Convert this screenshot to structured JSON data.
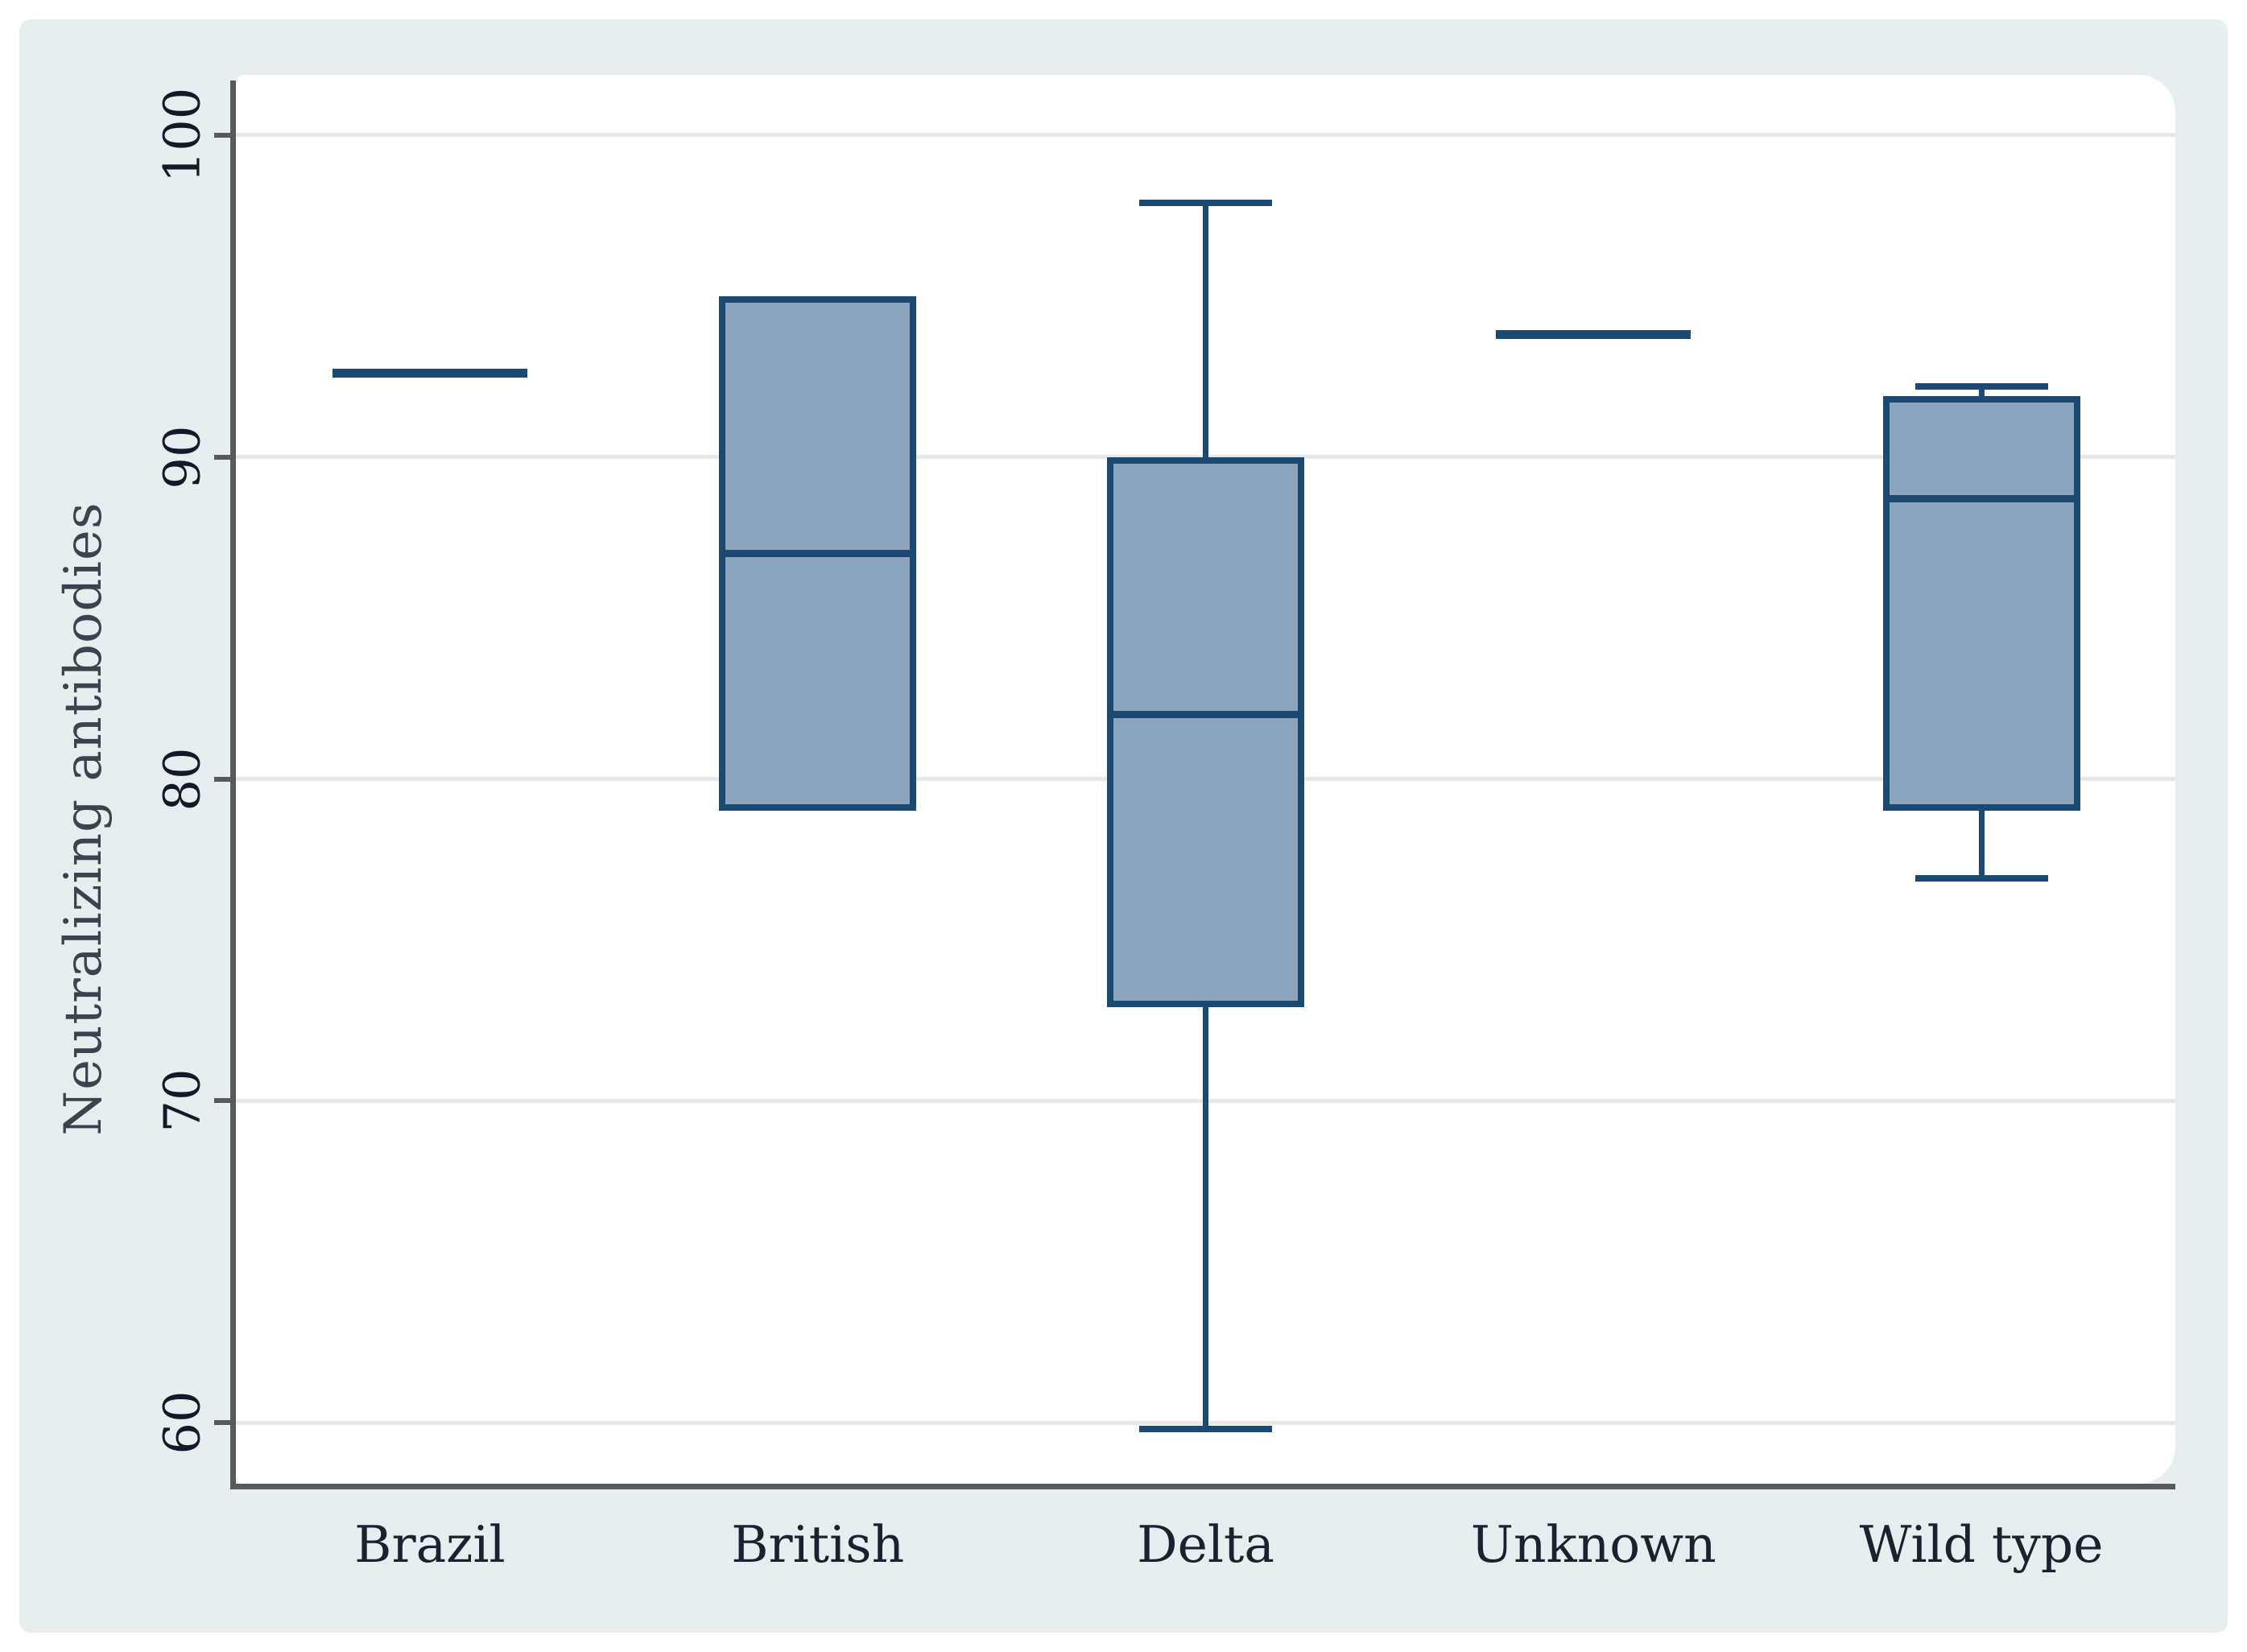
{
  "figure": {
    "y_axis_title": "Neutralizing antibodies"
  },
  "chart_data": {
    "type": "box",
    "title": "",
    "xlabel": "",
    "ylabel": "Neutralizing antibodies",
    "categories": [
      "Brazil",
      "British",
      "Delta",
      "Unknown",
      "Wild type"
    ],
    "y_ticks": [
      60,
      70,
      80,
      90,
      100
    ],
    "ylim": [
      58.1,
      101.7
    ],
    "grid": "horizontal",
    "legend": "none",
    "series": [
      {
        "name": "Brazil",
        "whisker_low": null,
        "q1": null,
        "median": 92.6,
        "q3": null,
        "whisker_high": null
      },
      {
        "name": "British",
        "whisker_low": null,
        "q1": 79.0,
        "median": 87.0,
        "q3": 95.0,
        "whisker_high": null
      },
      {
        "name": "Delta",
        "whisker_low": 59.8,
        "q1": 72.9,
        "median": 82.0,
        "q3": 90.0,
        "whisker_high": 97.9
      },
      {
        "name": "Unknown",
        "whisker_low": null,
        "q1": null,
        "median": 93.8,
        "q3": null,
        "whisker_high": null
      },
      {
        "name": "Wild type",
        "whisker_low": 76.9,
        "q1": 79.0,
        "median": 88.7,
        "q3": 91.9,
        "whisker_high": 92.2
      }
    ]
  },
  "colors": {
    "panel_background": "#e7eef0",
    "plot_background": "#ffffff",
    "gridline": "#e6eaea",
    "axis_line": "#565a5d",
    "box_border": "#1b4971",
    "box_fill": "#8da4bd",
    "tick_label": "#14192a",
    "axis_title": "#3a434e",
    "category_label": "#1a2230"
  }
}
